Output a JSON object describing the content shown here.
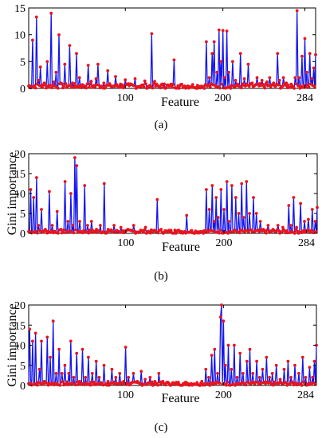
{
  "chart_data": [
    {
      "id": "a",
      "type": "line",
      "caption": "(a)",
      "xlabel": "Feature",
      "ylabel": "",
      "xlim": [
        1,
        295
      ],
      "ylim": [
        0,
        15
      ],
      "xticks": [
        100,
        200,
        284
      ],
      "xtick_labels": [
        "100",
        "200",
        "284"
      ],
      "yticks": [
        0,
        5,
        10,
        15
      ],
      "ytick_labels": [
        "0",
        "5",
        "10",
        "15"
      ],
      "line_color": "#1515ee",
      "marker_color": "#e8141e",
      "peaks": [
        [
          5,
          9
        ],
        [
          9,
          13.3
        ],
        [
          11,
          1.5
        ],
        [
          13,
          4
        ],
        [
          17,
          1
        ],
        [
          20,
          5
        ],
        [
          24,
          14
        ],
        [
          27,
          1.2
        ],
        [
          29,
          3
        ],
        [
          32,
          10
        ],
        [
          34,
          1
        ],
        [
          38,
          4.5
        ],
        [
          43,
          8
        ],
        [
          46,
          1
        ],
        [
          50,
          6.5
        ],
        [
          53,
          2
        ],
        [
          58,
          0.5
        ],
        [
          62,
          4.3
        ],
        [
          65,
          1.3
        ],
        [
          70,
          1.8
        ],
        [
          72,
          4.5
        ],
        [
          78,
          1
        ],
        [
          82,
          3.3
        ],
        [
          85,
          0.5
        ],
        [
          90,
          2.2
        ],
        [
          95,
          0.8
        ],
        [
          100,
          1.6
        ],
        [
          104,
          0.5
        ],
        [
          110,
          1.8
        ],
        [
          115,
          0.4
        ],
        [
          120,
          1.4
        ],
        [
          124,
          0.3
        ],
        [
          127,
          10.2
        ],
        [
          130,
          1.3
        ],
        [
          135,
          0.3
        ],
        [
          140,
          0.8
        ],
        [
          145,
          0.4
        ],
        [
          150,
          5.3
        ],
        [
          154,
          0.5
        ],
        [
          160,
          0.3
        ],
        [
          170,
          0.2
        ],
        [
          180,
          0.3
        ],
        [
          183,
          8.7
        ],
        [
          186,
          2
        ],
        [
          189,
          6.5
        ],
        [
          191,
          8.7
        ],
        [
          194,
          3
        ],
        [
          196,
          10.9
        ],
        [
          198,
          5
        ],
        [
          200,
          10.8
        ],
        [
          202,
          2
        ],
        [
          204,
          10.7
        ],
        [
          206,
          3
        ],
        [
          210,
          5
        ],
        [
          213,
          1.5
        ],
        [
          218,
          6.5
        ],
        [
          222,
          1.8
        ],
        [
          226,
          4.5
        ],
        [
          230,
          1
        ],
        [
          235,
          2
        ],
        [
          240,
          1.5
        ],
        [
          245,
          1.2
        ],
        [
          248,
          2
        ],
        [
          252,
          1
        ],
        [
          256,
          6.5
        ],
        [
          258,
          1.5
        ],
        [
          262,
          2
        ],
        [
          265,
          1
        ],
        [
          270,
          0.8
        ],
        [
          274,
          2
        ],
        [
          276,
          14.5
        ],
        [
          278,
          2
        ],
        [
          281,
          6
        ],
        [
          284,
          9.3
        ],
        [
          286,
          3
        ],
        [
          289,
          6.5
        ],
        [
          291,
          1.8
        ],
        [
          293,
          3.8
        ],
        [
          295,
          6.3
        ]
      ]
    },
    {
      "id": "b",
      "type": "line",
      "caption": "(b)",
      "xlabel": "Feature",
      "ylabel": "Gini importance",
      "xlim": [
        1,
        295
      ],
      "ylim": [
        0,
        20
      ],
      "xticks": [
        100,
        200,
        284
      ],
      "xtick_labels": [
        "100",
        "200",
        "284"
      ],
      "yticks": [
        0,
        5,
        10,
        15,
        20
      ],
      "ytick_labels": [
        "0",
        "5",
        "10",
        "15",
        "20"
      ],
      "line_color": "#1515ee",
      "marker_color": "#e8141e",
      "peaks": [
        [
          3,
          11
        ],
        [
          6,
          9
        ],
        [
          9,
          14
        ],
        [
          11,
          2
        ],
        [
          14,
          6
        ],
        [
          18,
          1
        ],
        [
          22,
          10.5
        ],
        [
          25,
          2
        ],
        [
          30,
          5.5
        ],
        [
          34,
          1
        ],
        [
          38,
          13
        ],
        [
          41,
          3
        ],
        [
          44,
          10
        ],
        [
          46,
          2
        ],
        [
          48,
          19
        ],
        [
          50,
          17
        ],
        [
          53,
          3
        ],
        [
          58,
          12
        ],
        [
          61,
          2
        ],
        [
          65,
          3
        ],
        [
          70,
          1
        ],
        [
          74,
          2
        ],
        [
          78,
          12.5
        ],
        [
          82,
          1
        ],
        [
          88,
          2
        ],
        [
          95,
          1.5
        ],
        [
          102,
          1
        ],
        [
          108,
          2
        ],
        [
          115,
          0.8
        ],
        [
          120,
          1.5
        ],
        [
          128,
          0.6
        ],
        [
          132,
          8.5
        ],
        [
          136,
          1
        ],
        [
          142,
          0.5
        ],
        [
          150,
          0.8
        ],
        [
          155,
          0.5
        ],
        [
          162,
          4.5
        ],
        [
          166,
          0.5
        ],
        [
          172,
          0.4
        ],
        [
          178,
          0.5
        ],
        [
          182,
          11
        ],
        [
          185,
          6
        ],
        [
          188,
          12
        ],
        [
          190,
          3
        ],
        [
          192,
          9
        ],
        [
          194,
          4
        ],
        [
          197,
          11
        ],
        [
          200,
          6
        ],
        [
          203,
          13
        ],
        [
          205,
          3
        ],
        [
          208,
          12
        ],
        [
          212,
          9
        ],
        [
          215,
          5
        ],
        [
          218,
          12.5
        ],
        [
          220,
          4
        ],
        [
          223,
          13
        ],
        [
          226,
          5
        ],
        [
          230,
          9
        ],
        [
          233,
          5
        ],
        [
          237,
          3
        ],
        [
          240,
          1
        ],
        [
          245,
          2
        ],
        [
          250,
          1
        ],
        [
          255,
          2
        ],
        [
          260,
          1.5
        ],
        [
          266,
          7
        ],
        [
          268,
          2
        ],
        [
          271,
          9
        ],
        [
          274,
          1.5
        ],
        [
          278,
          7.5
        ],
        [
          282,
          3
        ],
        [
          286,
          3.5
        ],
        [
          290,
          6
        ],
        [
          293,
          3
        ],
        [
          295,
          6.5
        ]
      ]
    },
    {
      "id": "c",
      "type": "line",
      "caption": "(c)",
      "xlabel": "Feature",
      "ylabel": "Gini importance",
      "xlim": [
        1,
        295
      ],
      "ylim": [
        0,
        20
      ],
      "xticks": [
        100,
        200,
        284
      ],
      "xtick_labels": [
        "100",
        "200",
        "284"
      ],
      "yticks": [
        0,
        5,
        10,
        15,
        20
      ],
      "ytick_labels": [
        "0",
        "5",
        "10",
        "15",
        "20"
      ],
      "line_color": "#1515ee",
      "marker_color": "#e8141e",
      "peaks": [
        [
          2,
          14
        ],
        [
          5,
          11
        ],
        [
          8,
          13
        ],
        [
          12,
          4
        ],
        [
          14,
          11
        ],
        [
          17,
          1
        ],
        [
          20,
          12
        ],
        [
          23,
          7
        ],
        [
          26,
          16
        ],
        [
          29,
          3
        ],
        [
          32,
          9
        ],
        [
          35,
          3
        ],
        [
          38,
          5
        ],
        [
          42,
          3
        ],
        [
          44,
          11
        ],
        [
          47,
          2
        ],
        [
          50,
          8
        ],
        [
          53,
          1
        ],
        [
          56,
          9
        ],
        [
          59,
          2
        ],
        [
          62,
          7
        ],
        [
          66,
          3
        ],
        [
          70,
          6
        ],
        [
          73,
          2
        ],
        [
          78,
          5
        ],
        [
          82,
          1
        ],
        [
          86,
          4
        ],
        [
          90,
          2
        ],
        [
          94,
          3
        ],
        [
          98,
          1
        ],
        [
          100,
          9.5
        ],
        [
          103,
          2
        ],
        [
          108,
          3
        ],
        [
          112,
          1
        ],
        [
          116,
          3.5
        ],
        [
          120,
          1.5
        ],
        [
          125,
          2
        ],
        [
          130,
          1
        ],
        [
          134,
          3
        ],
        [
          138,
          1
        ],
        [
          144,
          0.6
        ],
        [
          150,
          0.4
        ],
        [
          160,
          0.3
        ],
        [
          170,
          0.4
        ],
        [
          178,
          1
        ],
        [
          182,
          4
        ],
        [
          185,
          2
        ],
        [
          188,
          7.5
        ],
        [
          191,
          9
        ],
        [
          194,
          3
        ],
        [
          197,
          17
        ],
        [
          198,
          20
        ],
        [
          200,
          16
        ],
        [
          202,
          5
        ],
        [
          205,
          10
        ],
        [
          208,
          4
        ],
        [
          211,
          10
        ],
        [
          214,
          2
        ],
        [
          217,
          8
        ],
        [
          220,
          3
        ],
        [
          224,
          6
        ],
        [
          227,
          9
        ],
        [
          230,
          3
        ],
        [
          234,
          6
        ],
        [
          237,
          2
        ],
        [
          240,
          4
        ],
        [
          244,
          7
        ],
        [
          247,
          2
        ],
        [
          250,
          3
        ],
        [
          254,
          5
        ],
        [
          258,
          1.5
        ],
        [
          262,
          4
        ],
        [
          266,
          6
        ],
        [
          269,
          2
        ],
        [
          273,
          5
        ],
        [
          277,
          3
        ],
        [
          281,
          7
        ],
        [
          284,
          2
        ],
        [
          288,
          4.5
        ],
        [
          291,
          2
        ],
        [
          293,
          6
        ],
        [
          295,
          10
        ]
      ]
    }
  ]
}
